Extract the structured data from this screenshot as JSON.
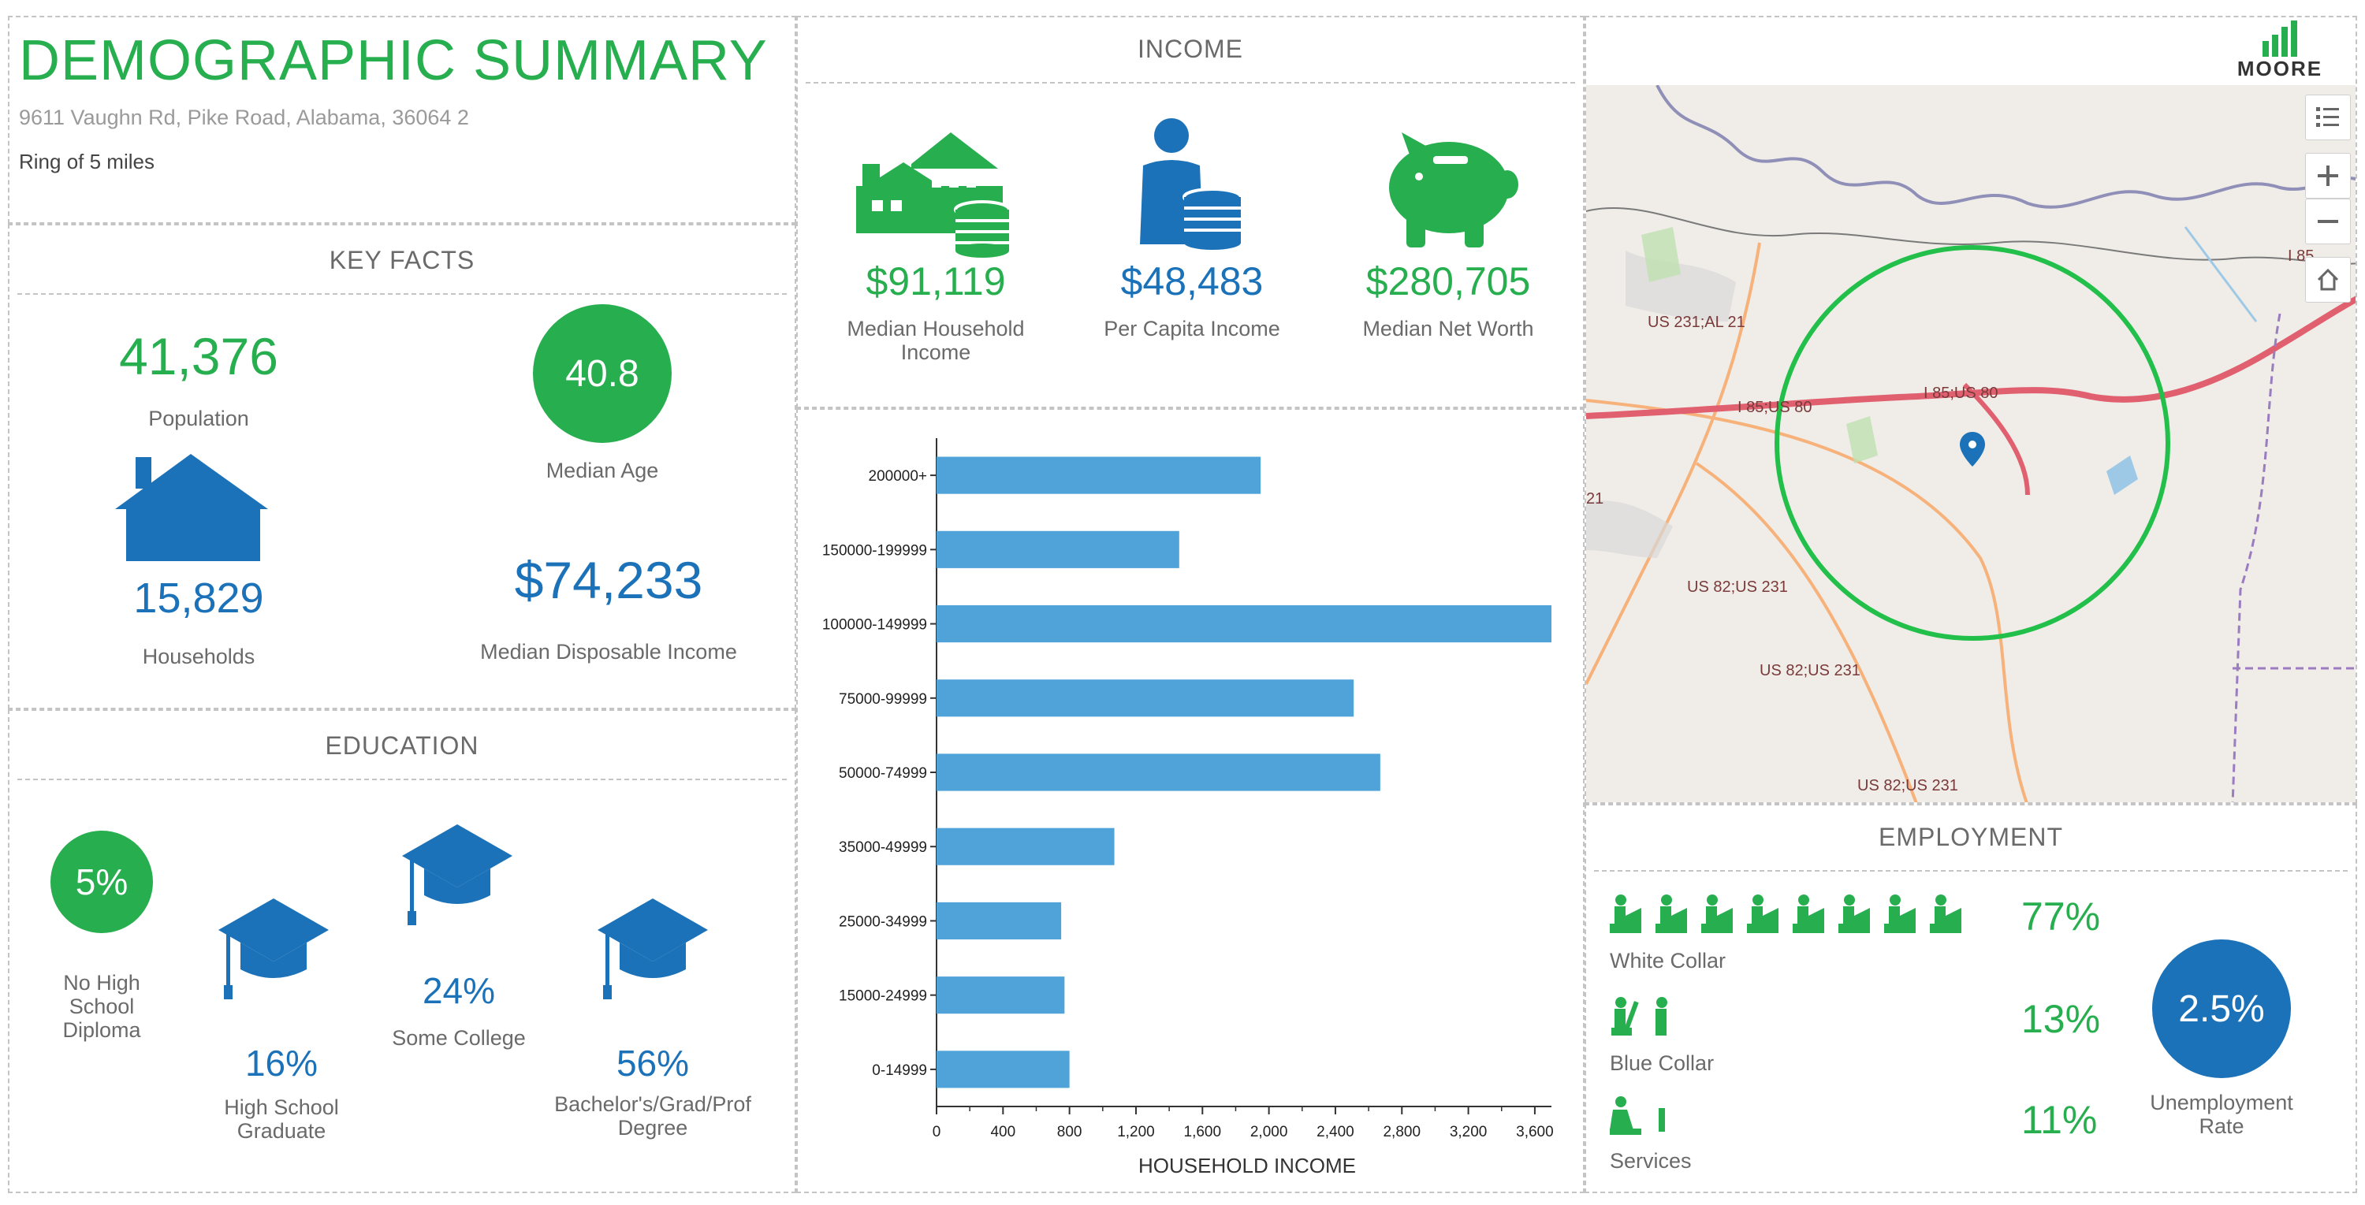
{
  "summary": {
    "title": "DEMOGRAPHIC SUMMARY",
    "address": "9611 Vaughn Rd, Pike Road, Alabama, 36064 2",
    "ring": "Ring of 5 miles"
  },
  "key_facts": {
    "header": "KEY FACTS",
    "population_value": "41,376",
    "population_label": "Population",
    "median_age_value": "40.8",
    "median_age_label": "Median Age",
    "households_value": "15,829",
    "households_label": "Households",
    "disposable_income_value": "$74,233",
    "disposable_income_label": "Median Disposable Income"
  },
  "education": {
    "header": "EDUCATION",
    "no_hs_value": "5%",
    "no_hs_label": "No High School Diploma",
    "hs_value": "16%",
    "hs_label": "High School Graduate",
    "college_value": "24%",
    "college_label": "Some College",
    "bachelors_value": "56%",
    "bachelors_label": "Bachelor's/Grad/Prof Degree"
  },
  "income": {
    "header": "INCOME",
    "household_value": "$91,119",
    "household_label": "Median Household Income",
    "per_capita_value": "$48,483",
    "per_capita_label": "Per Capita Income",
    "net_worth_value": "$280,705",
    "net_worth_label": "Median Net Worth"
  },
  "chart_data": {
    "type": "bar",
    "orientation": "horizontal",
    "categories": [
      "200000+",
      "150000-199999",
      "100000-149999",
      "75000-99999",
      "50000-74999",
      "35000-49999",
      "25000-34999",
      "15000-24999",
      "0-14999"
    ],
    "values": [
      1950,
      1460,
      3700,
      2510,
      2670,
      1070,
      750,
      770,
      800
    ],
    "xlabel": "HOUSEHOLD INCOME",
    "ylabel": "",
    "xlim": [
      0,
      3700
    ],
    "xticks": [
      "0",
      "400",
      "800",
      "1,200",
      "1,600",
      "2,000",
      "2,400",
      "2,800",
      "3,200",
      "3,600"
    ],
    "grid": false,
    "bar_color": "#4fa3d9"
  },
  "map": {
    "logo_text": "MOORE",
    "road_labels": [
      "US 231;AL 21",
      "I 85;US 80",
      "I 85;US 80",
      "US 82;US 231",
      "US 82;US 231",
      "US 82;US 231",
      "I 85",
      "21"
    ],
    "controls": [
      "legend-icon",
      "zoom-in-icon",
      "zoom-out-icon",
      "home-icon"
    ],
    "ring_color": "#22c04a",
    "marker_color": "#1c72b8"
  },
  "employment": {
    "header": "EMPLOYMENT",
    "white_collar_value": "77%",
    "white_collar_label": "White Collar",
    "blue_collar_value": "13%",
    "blue_collar_label": "Blue Collar",
    "services_value": "11%",
    "services_label": "Services",
    "unemployment_value": "2.5%",
    "unemployment_label": "Unemployment Rate"
  },
  "colors": {
    "green": "#27ae4f",
    "blue": "#1c72b8",
    "light_blue": "#4fa3d9"
  }
}
